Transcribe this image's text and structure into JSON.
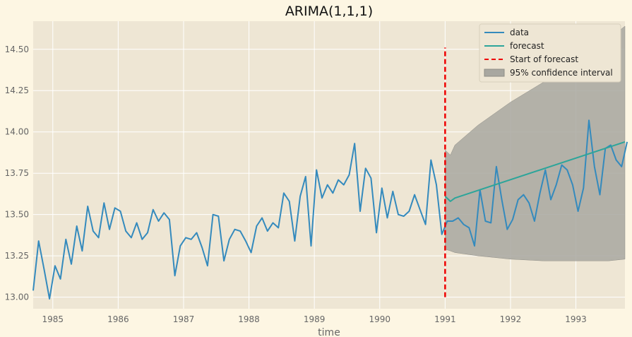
{
  "chart_data": {
    "type": "line",
    "title": "ARIMA(1,1,1)",
    "xlabel": "time",
    "ylabel": "",
    "xlim": [
      1984.7,
      1993.75
    ],
    "ylim": [
      12.93,
      14.67
    ],
    "grid": true,
    "legend_position": "top-right",
    "x_ticks": [
      1985,
      1986,
      1987,
      1988,
      1989,
      1990,
      1991,
      1992,
      1993
    ],
    "x_tick_labels": [
      "1985",
      "1986",
      "1987",
      "1988",
      "1989",
      "1990",
      "1991",
      "1992",
      "1993"
    ],
    "y_ticks": [
      13.0,
      13.25,
      13.5,
      13.75,
      14.0,
      14.25,
      14.5
    ],
    "y_tick_labels": [
      "13.00",
      "13.25",
      "13.50",
      "13.75",
      "14.00",
      "14.25",
      "14.50"
    ],
    "series": [
      {
        "name": "data",
        "color": "#348ABD",
        "x_start": 1984.7,
        "x_step": 0.08333,
        "values": [
          13.04,
          13.34,
          13.17,
          12.99,
          13.19,
          13.11,
          13.35,
          13.2,
          13.43,
          13.28,
          13.55,
          13.4,
          13.36,
          13.57,
          13.41,
          13.54,
          13.52,
          13.4,
          13.36,
          13.45,
          13.35,
          13.39,
          13.53,
          13.46,
          13.51,
          13.47,
          13.13,
          13.31,
          13.36,
          13.35,
          13.39,
          13.3,
          13.19,
          13.5,
          13.49,
          13.22,
          13.35,
          13.41,
          13.4,
          13.34,
          13.27,
          13.43,
          13.48,
          13.4,
          13.45,
          13.42,
          13.63,
          13.58,
          13.34,
          13.61,
          13.73,
          13.31,
          13.77,
          13.6,
          13.68,
          13.63,
          13.71,
          13.68,
          13.74,
          13.93,
          13.52,
          13.78,
          13.72,
          13.39,
          13.66,
          13.48,
          13.64,
          13.5,
          13.49,
          13.52,
          13.62,
          13.53,
          13.44,
          13.83,
          13.68,
          13.38,
          13.46,
          13.46,
          13.48,
          13.44,
          13.42,
          13.31,
          13.65,
          13.46,
          13.45,
          13.79,
          13.59,
          13.41,
          13.47,
          13.59,
          13.62,
          13.57,
          13.46,
          13.63,
          13.77,
          13.59,
          13.68,
          13.8,
          13.77,
          13.68,
          13.52,
          13.66,
          14.07,
          13.79,
          13.62,
          13.9,
          13.92,
          13.83,
          13.79,
          13.94
        ]
      },
      {
        "name": "forecast",
        "color": "#2ca59a",
        "x": [
          1991.0,
          1991.08,
          1991.15,
          1993.75
        ],
        "values": [
          13.61,
          13.58,
          13.6,
          13.94
        ]
      }
    ],
    "forecast_start": {
      "label": "Start of forecast",
      "x": 1991.0,
      "y_range": [
        13.0,
        14.51
      ],
      "color": "#ee0000"
    },
    "confidence_interval": {
      "label": "95% confidence interval",
      "color": "#a8a7a0",
      "x": [
        1991.0,
        1991.08,
        1991.15,
        1991.5,
        1992.0,
        1992.5,
        1993.0,
        1993.5,
        1993.75
      ],
      "upper": [
        13.89,
        13.86,
        13.92,
        14.04,
        14.18,
        14.3,
        14.43,
        14.56,
        14.64
      ],
      "lower": [
        13.29,
        13.28,
        13.27,
        13.25,
        13.23,
        13.22,
        13.22,
        13.22,
        13.23
      ]
    },
    "legend": [
      "data",
      "forecast",
      "Start of forecast",
      "95% confidence interval"
    ]
  }
}
